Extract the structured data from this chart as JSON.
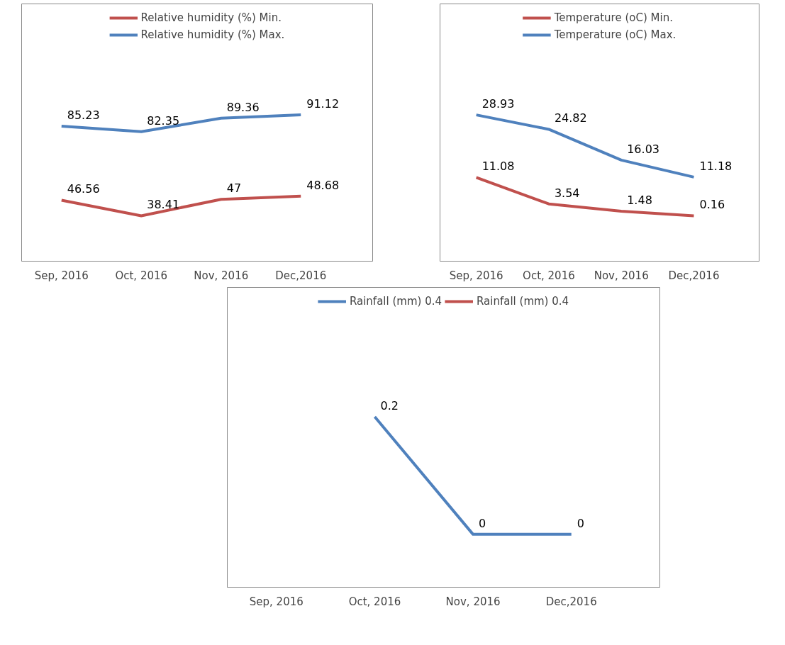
{
  "chart_data": [
    {
      "type": "line",
      "categories": [
        "Sep, 2016",
        "Oct, 2016",
        "Nov, 2016",
        "Dec,2016"
      ],
      "series": [
        {
          "name": "Relative humidity (%) Min.",
          "color": "#c0504d",
          "values": [
            46.56,
            38.41,
            47,
            48.68
          ]
        },
        {
          "name": "Relative humidity (%) Max.",
          "color": "#4f81bd",
          "values": [
            85.23,
            82.35,
            89.36,
            91.12
          ]
        }
      ],
      "data_labels": true,
      "legend": "top",
      "tick_labels": "x",
      "grid": false
    },
    {
      "type": "line",
      "categories": [
        "Sep, 2016",
        "Oct, 2016",
        "Nov, 2016",
        "Dec,2016"
      ],
      "series": [
        {
          "name": "Temperature (oC) Min.",
          "color": "#c0504d",
          "values": [
            11.08,
            3.54,
            1.48,
            0.16
          ]
        },
        {
          "name": "Temperature (oC) Max.",
          "color": "#4f81bd",
          "values": [
            28.93,
            24.82,
            16.03,
            11.18
          ]
        }
      ],
      "data_labels": true,
      "legend": "top",
      "tick_labels": "x",
      "grid": false
    },
    {
      "type": "line",
      "categories": [
        "Sep, 2016",
        "Oct, 2016",
        "Nov, 2016",
        "Dec,2016"
      ],
      "series": [
        {
          "name": "Rainfall (mm) 0.4",
          "color": "#4f81bd",
          "values": [
            null,
            0.2,
            0,
            0
          ]
        },
        {
          "name": "Rainfall (mm) 0.4",
          "color": "#c0504d",
          "values": [
            null,
            null,
            null,
            null
          ]
        }
      ],
      "data_labels": true,
      "legend": "top",
      "tick_labels": "x",
      "grid": false
    }
  ]
}
